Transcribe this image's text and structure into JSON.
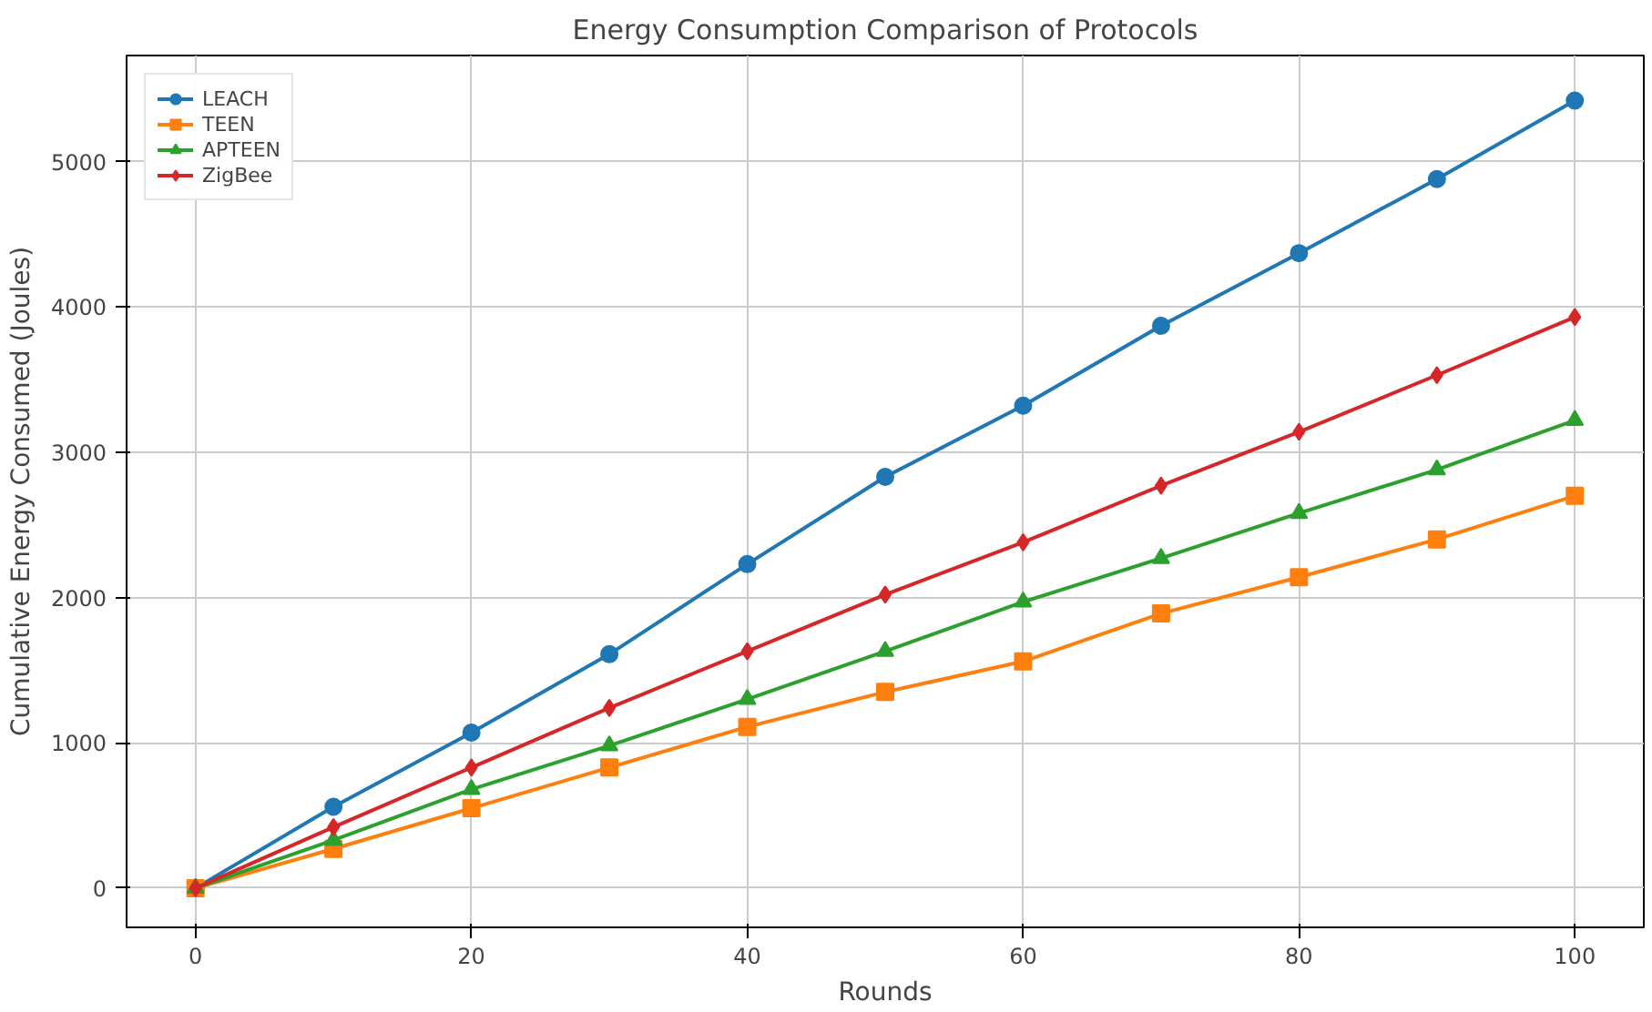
{
  "chart_data": {
    "type": "line",
    "title": "Energy Consumption Comparison of Protocols",
    "xlabel": "Rounds",
    "ylabel": "Cumulative Energy Consumed (Joules)",
    "x": [
      0,
      10,
      20,
      30,
      40,
      50,
      60,
      70,
      80,
      90,
      100
    ],
    "series": [
      {
        "name": "LEACH",
        "color": "#1f77b4",
        "marker": "circle",
        "values": [
          0,
          560,
          1070,
          1610,
          2230,
          2830,
          3320,
          3870,
          4370,
          4880,
          5420
        ]
      },
      {
        "name": "TEEN",
        "color": "#ff7f0e",
        "marker": "square",
        "values": [
          0,
          270,
          550,
          830,
          1110,
          1350,
          1560,
          1890,
          2140,
          2400,
          2700
        ]
      },
      {
        "name": "APTEEN",
        "color": "#2ca02c",
        "marker": "triangle",
        "values": [
          0,
          330,
          680,
          980,
          1300,
          1630,
          1970,
          2270,
          2580,
          2880,
          3220
        ]
      },
      {
        "name": "ZigBee",
        "color": "#d62728",
        "marker": "diamond",
        "values": [
          0,
          420,
          830,
          1240,
          1630,
          2020,
          2380,
          2770,
          3140,
          3530,
          3930
        ]
      }
    ],
    "xlim": [
      -5,
      105
    ],
    "ylim": [
      -270,
      5730
    ],
    "xticks": [
      0,
      20,
      40,
      60,
      80,
      100
    ],
    "yticks": [
      0,
      1000,
      2000,
      3000,
      4000,
      5000
    ],
    "grid": true,
    "legend": "top left",
    "line_style": "solid"
  }
}
